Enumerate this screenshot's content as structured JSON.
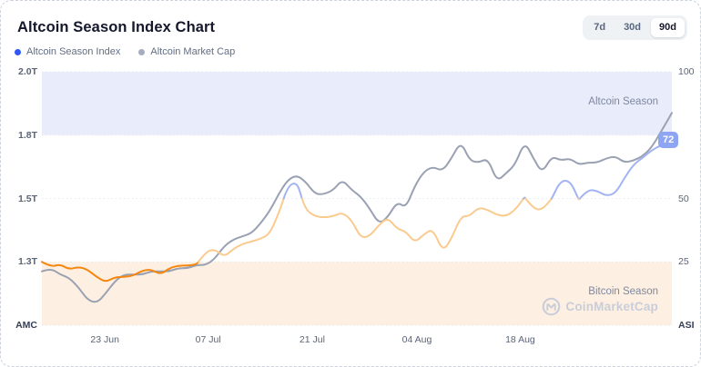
{
  "header": {
    "title": "Altcoin Season Index Chart",
    "range_options": [
      {
        "label": "7d",
        "active": false
      },
      {
        "label": "30d",
        "active": false
      },
      {
        "label": "90d",
        "active": true
      }
    ]
  },
  "legend": [
    {
      "label": "Altcoin Season Index",
      "color": "#3156f5"
    },
    {
      "label": "Altcoin Market Cap",
      "color": "#a6adbf"
    }
  ],
  "watermark": {
    "brand": "CoinMarketCap"
  },
  "colors": {
    "index_line_orange": "#f5860f",
    "index_line_peach": "#fbca8e",
    "index_line_blue": "#a2b3f3",
    "market_cap_line": "#99a1b3",
    "gridline": "#e6e9f0",
    "badge_bg": "#8ea5f4",
    "watermark_gray": "#c9cdd9"
  },
  "chart_data": {
    "type": "line",
    "title": "Altcoin Season Index Chart",
    "time_range_selected": "90d",
    "x_unit": "days from start of 90d window",
    "x_span_days": 86,
    "x_ticks": [
      {
        "day": 8.6,
        "label": "23 Jun"
      },
      {
        "day": 22.7,
        "label": "07 Jul"
      },
      {
        "day": 36.9,
        "label": "21 Jul"
      },
      {
        "day": 51.2,
        "label": "04 Aug"
      },
      {
        "day": 65.3,
        "label": "18 Aug"
      }
    ],
    "left_axis": {
      "label": "AMC",
      "unit": "trillion USD",
      "ticks": [
        {
          "label": "2.0T",
          "value": 2.0,
          "asi_pos": 100
        },
        {
          "label": "1.8T",
          "value": 1.8,
          "asi_pos": 75
        },
        {
          "label": "1.5T",
          "value": 1.5,
          "asi_pos": 50
        },
        {
          "label": "1.3T",
          "value": 1.3,
          "asi_pos": 25
        }
      ],
      "value_to_position_anchors": [
        [
          1.1,
          0
        ],
        [
          1.3,
          25
        ],
        [
          1.5,
          50
        ],
        [
          1.8,
          75
        ],
        [
          2.0,
          100
        ]
      ]
    },
    "right_axis": {
      "label": "ASI",
      "range": [
        0,
        100
      ],
      "ticks": [
        {
          "label": "100",
          "value": 100
        },
        {
          "label": "50",
          "value": 50
        },
        {
          "label": "25",
          "value": 25
        }
      ]
    },
    "zones": [
      {
        "label": "Altcoin Season",
        "asi_range": [
          75,
          100
        ],
        "fill": "#e9ecfb"
      },
      {
        "label": "Bitcoin Season",
        "asi_range": [
          0,
          25
        ],
        "fill": "#fdf0e2"
      }
    ],
    "current_index_value": "72",
    "index_color_rule": "value <= 25 orange, 25-50 peach, >= 50 periwinkle blue",
    "series": [
      {
        "name": "Altcoin Season Index",
        "axis": "right",
        "points": [
          [
            0,
            25
          ],
          [
            1.2,
            23
          ],
          [
            2.5,
            24
          ],
          [
            3.7,
            22
          ],
          [
            5,
            23
          ],
          [
            6.2,
            22
          ],
          [
            7.5,
            19
          ],
          [
            8.7,
            17
          ],
          [
            10,
            19
          ],
          [
            11.2,
            19
          ],
          [
            12.4,
            19.5
          ],
          [
            13.7,
            21.5
          ],
          [
            14.9,
            22
          ],
          [
            16.2,
            20
          ],
          [
            17.4,
            22.5
          ],
          [
            18.6,
            23.5
          ],
          [
            19.9,
            23.5
          ],
          [
            21.1,
            24
          ],
          [
            22.4,
            29
          ],
          [
            23.6,
            30
          ],
          [
            24.9,
            27
          ],
          [
            26.1,
            30
          ],
          [
            27.3,
            32
          ],
          [
            28.6,
            33
          ],
          [
            29.8,
            34
          ],
          [
            31.1,
            36
          ],
          [
            32.3,
            44
          ],
          [
            33.6,
            55
          ],
          [
            34.8,
            56.5
          ],
          [
            36,
            45.5
          ],
          [
            37.3,
            43
          ],
          [
            38.5,
            42.5
          ],
          [
            39.8,
            43
          ],
          [
            41,
            44.5
          ],
          [
            42.3,
            41.5
          ],
          [
            43.5,
            34.5
          ],
          [
            44.7,
            35
          ],
          [
            46,
            39.5
          ],
          [
            47.2,
            42.5
          ],
          [
            48.5,
            38
          ],
          [
            49.7,
            37
          ],
          [
            50.9,
            32.5
          ],
          [
            52.2,
            36
          ],
          [
            53.4,
            38
          ],
          [
            54.7,
            29
          ],
          [
            55.9,
            34
          ],
          [
            57.2,
            43
          ],
          [
            58.4,
            43
          ],
          [
            59.6,
            46.5
          ],
          [
            60.9,
            45.5
          ],
          [
            62.1,
            43.5
          ],
          [
            63.4,
            43
          ],
          [
            64.6,
            45.5
          ],
          [
            65.9,
            50.5
          ],
          [
            67.1,
            46
          ],
          [
            68.3,
            45.5
          ],
          [
            69.6,
            50
          ],
          [
            70.8,
            57
          ],
          [
            72.1,
            57
          ],
          [
            73.3,
            49.5
          ],
          [
            74.5,
            53.5
          ],
          [
            75.8,
            53
          ],
          [
            77,
            51
          ],
          [
            78.3,
            52
          ],
          [
            79.5,
            58
          ],
          [
            80.8,
            63.5
          ],
          [
            82,
            66
          ],
          [
            83.2,
            69
          ],
          [
            84.5,
            71
          ],
          [
            86,
            72
          ]
        ]
      },
      {
        "name": "Altcoin Market Cap",
        "axis": "left",
        "points": [
          [
            0,
            1.27
          ],
          [
            1.2,
            1.28
          ],
          [
            2.5,
            1.26
          ],
          [
            3.7,
            1.25
          ],
          [
            5,
            1.22
          ],
          [
            6.2,
            1.18
          ],
          [
            7.5,
            1.17
          ],
          [
            8.7,
            1.2
          ],
          [
            10,
            1.24
          ],
          [
            11.2,
            1.26
          ],
          [
            12.4,
            1.26
          ],
          [
            13.7,
            1.26
          ],
          [
            14.9,
            1.27
          ],
          [
            16.2,
            1.27
          ],
          [
            17.4,
            1.27
          ],
          [
            18.6,
            1.28
          ],
          [
            19.9,
            1.28
          ],
          [
            21.1,
            1.29
          ],
          [
            22.4,
            1.29
          ],
          [
            23.6,
            1.31
          ],
          [
            24.9,
            1.35
          ],
          [
            26.1,
            1.37
          ],
          [
            27.3,
            1.38
          ],
          [
            28.6,
            1.39
          ],
          [
            29.8,
            1.42
          ],
          [
            31.1,
            1.46
          ],
          [
            32.3,
            1.52
          ],
          [
            33.6,
            1.59
          ],
          [
            34.8,
            1.61
          ],
          [
            36,
            1.58
          ],
          [
            37.3,
            1.52
          ],
          [
            38.5,
            1.52
          ],
          [
            39.8,
            1.54
          ],
          [
            41,
            1.59
          ],
          [
            42.3,
            1.54
          ],
          [
            43.5,
            1.51
          ],
          [
            44.7,
            1.47
          ],
          [
            46,
            1.42
          ],
          [
            47.2,
            1.44
          ],
          [
            48.5,
            1.49
          ],
          [
            49.7,
            1.47
          ],
          [
            50.9,
            1.56
          ],
          [
            52.2,
            1.63
          ],
          [
            53.4,
            1.65
          ],
          [
            54.7,
            1.63
          ],
          [
            55.9,
            1.69
          ],
          [
            57.2,
            1.77
          ],
          [
            58.4,
            1.68
          ],
          [
            59.6,
            1.67
          ],
          [
            60.9,
            1.69
          ],
          [
            62.1,
            1.58
          ],
          [
            63.4,
            1.62
          ],
          [
            64.6,
            1.66
          ],
          [
            65.9,
            1.77
          ],
          [
            67.1,
            1.69
          ],
          [
            68.3,
            1.62
          ],
          [
            69.6,
            1.7
          ],
          [
            70.8,
            1.68
          ],
          [
            72.1,
            1.69
          ],
          [
            73.3,
            1.66
          ],
          [
            74.5,
            1.67
          ],
          [
            75.8,
            1.67
          ],
          [
            77,
            1.69
          ],
          [
            78.3,
            1.7
          ],
          [
            79.5,
            1.67
          ],
          [
            80.8,
            1.68
          ],
          [
            82,
            1.7
          ],
          [
            83.2,
            1.74
          ],
          [
            84.5,
            1.81
          ],
          [
            86,
            1.87
          ]
        ]
      }
    ]
  }
}
